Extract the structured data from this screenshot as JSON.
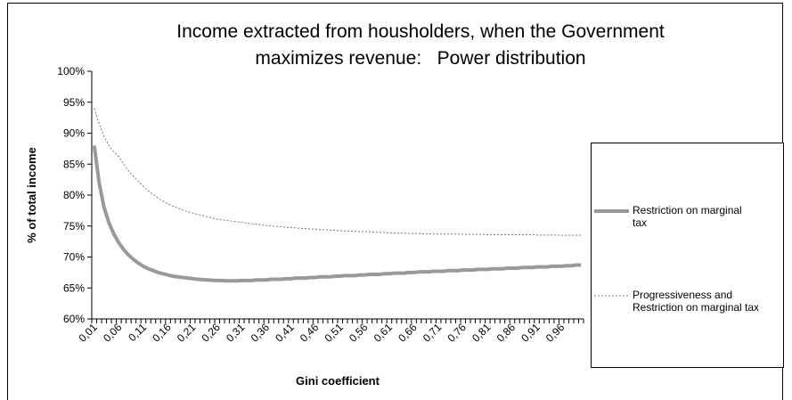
{
  "chart_data": {
    "type": "line",
    "title": [
      "Income extracted from housholders, when the Government",
      "maximizes revenue:   Power distribution"
    ],
    "x_label": "Gini coefficient",
    "y_label": "% of total income",
    "categories": [
      "0,01",
      null,
      null,
      null,
      null,
      "0,06",
      null,
      null,
      null,
      null,
      "0,11",
      null,
      null,
      null,
      null,
      "0,16",
      null,
      null,
      null,
      null,
      "0,21",
      null,
      null,
      null,
      null,
      "0,26",
      null,
      null,
      null,
      null,
      "0,31",
      null,
      null,
      null,
      null,
      "0,36",
      null,
      null,
      null,
      null,
      "0,41",
      null,
      null,
      null,
      null,
      "0,46",
      null,
      null,
      null,
      null,
      "0,51",
      null,
      null,
      null,
      null,
      "0,56",
      null,
      null,
      null,
      null,
      "0,61",
      null,
      null,
      null,
      null,
      "0,66",
      null,
      null,
      null,
      null,
      "0,71",
      null,
      null,
      null,
      null,
      "0,76",
      null,
      null,
      null,
      null,
      "0,81",
      null,
      null,
      null,
      null,
      "0,86",
      null,
      null,
      null,
      null,
      "0,91",
      null,
      null,
      null,
      null,
      "0,96",
      null,
      null,
      null,
      null
    ],
    "series": [
      {
        "name": "Restriction on marginal tax",
        "color": "#999999",
        "style": "solid",
        "values": [
          88.0,
          82.0,
          78.0,
          75.5,
          73.7,
          72.3,
          71.2,
          70.3,
          69.6,
          69.0,
          68.5,
          68.1,
          67.8,
          67.5,
          67.3,
          67.1,
          66.9,
          66.8,
          66.7,
          66.6,
          66.5,
          66.4,
          66.35,
          66.3,
          66.25,
          66.2,
          66.2,
          66.15,
          66.15,
          66.15,
          66.2,
          66.2,
          66.2,
          66.3,
          66.3,
          66.3,
          66.4,
          66.4,
          66.4,
          66.5,
          66.5,
          66.6,
          66.6,
          66.6,
          66.7,
          66.7,
          66.8,
          66.8,
          66.8,
          66.9,
          66.9,
          67.0,
          67.0,
          67.0,
          67.1,
          67.1,
          67.2,
          67.2,
          67.2,
          67.3,
          67.3,
          67.4,
          67.4,
          67.4,
          67.5,
          67.5,
          67.6,
          67.6,
          67.6,
          67.7,
          67.7,
          67.7,
          67.8,
          67.8,
          67.8,
          67.9,
          67.9,
          67.9,
          68.0,
          68.0,
          68.0,
          68.1,
          68.1,
          68.1,
          68.2,
          68.2,
          68.2,
          68.3,
          68.3,
          68.3,
          68.4,
          68.4,
          68.4,
          68.5,
          68.5,
          68.5,
          68.6,
          68.6,
          68.7,
          68.7
        ]
      },
      {
        "name": "Progressiveness and Restriction on marginal tax",
        "color": "#777777",
        "style": "dotted",
        "values": [
          94.0,
          91.5,
          89.5,
          88.0,
          87.0,
          86.2,
          85.0,
          83.9,
          83.0,
          82.2,
          81.4,
          80.7,
          80.1,
          79.5,
          79.0,
          78.6,
          78.2,
          77.9,
          77.6,
          77.3,
          77.1,
          76.9,
          76.7,
          76.5,
          76.3,
          76.1,
          76.0,
          75.9,
          75.8,
          75.7,
          75.6,
          75.5,
          75.4,
          75.3,
          75.2,
          75.1,
          75.0,
          74.95,
          74.9,
          74.8,
          74.75,
          74.7,
          74.65,
          74.6,
          74.55,
          74.5,
          74.45,
          74.4,
          74.35,
          74.3,
          74.25,
          74.2,
          74.2,
          74.15,
          74.1,
          74.1,
          74.05,
          74.0,
          74.0,
          73.95,
          73.9,
          73.9,
          73.85,
          73.85,
          73.8,
          73.8,
          73.8,
          73.75,
          73.75,
          73.7,
          73.7,
          73.7,
          73.7,
          73.7,
          73.7,
          73.65,
          73.65,
          73.65,
          73.65,
          73.65,
          73.6,
          73.6,
          73.6,
          73.6,
          73.6,
          73.6,
          73.6,
          73.6,
          73.6,
          73.6,
          73.55,
          73.55,
          73.55,
          73.55,
          73.55,
          73.5,
          73.5,
          73.5,
          73.5,
          73.5
        ]
      }
    ],
    "ylim": [
      60,
      100
    ],
    "yticks": [
      {
        "value": 60,
        "label": "60%"
      },
      {
        "value": 65,
        "label": "65%"
      },
      {
        "value": 70,
        "label": "70%"
      },
      {
        "value": 75,
        "label": "75%"
      },
      {
        "value": 80,
        "label": "80%"
      },
      {
        "value": 85,
        "label": "85%"
      },
      {
        "value": 90,
        "label": "90%"
      },
      {
        "value": 95,
        "label": "95%"
      },
      {
        "value": 100,
        "label": "100%"
      }
    ],
    "grid": false,
    "legend": "right"
  }
}
